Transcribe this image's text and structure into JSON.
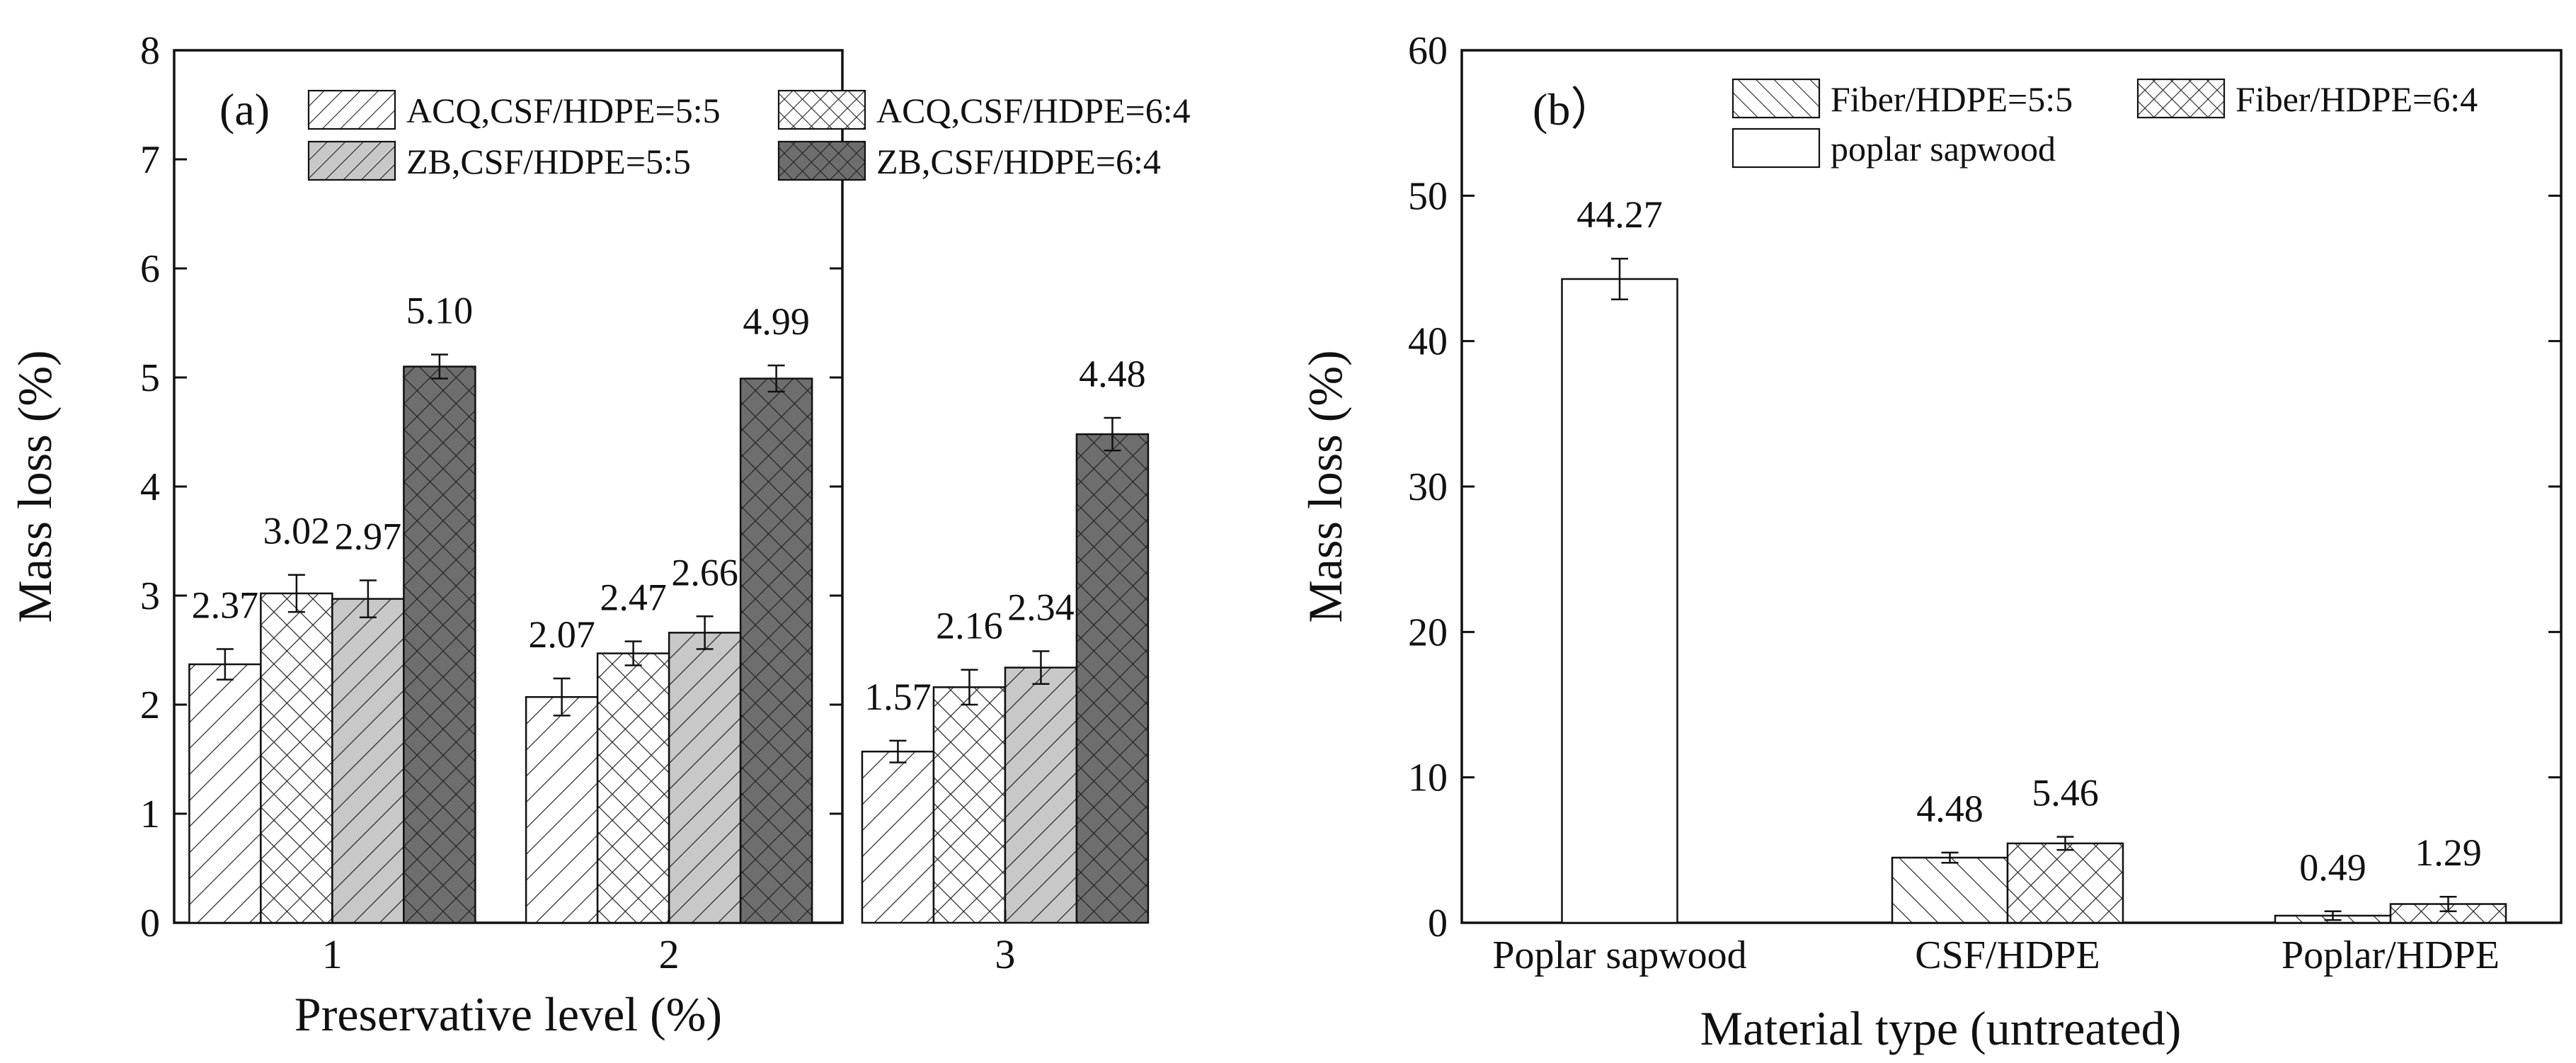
{
  "chart_data": [
    {
      "panel": "(a)",
      "type": "bar",
      "title": "",
      "xlabel": "Preservative level (%)",
      "ylabel": "Mass loss (%)",
      "ylim": [
        0,
        8
      ],
      "yticks": [
        "0",
        "1",
        "2",
        "3",
        "4",
        "5",
        "6",
        "7",
        "8"
      ],
      "categories": [
        "1",
        "2",
        "3"
      ],
      "legend_position": "top",
      "series": [
        {
          "name": "ACQ,CSF/HDPE=5:5",
          "values": [
            2.37,
            2.07,
            1.57
          ],
          "labels": [
            "2.37",
            "2.07",
            "1.57"
          ],
          "errors": [
            0.14,
            0.17,
            0.1
          ],
          "pattern": "diag-fwd",
          "fill": "#ffffff"
        },
        {
          "name": "ACQ,CSF/HDPE=6:4",
          "values": [
            3.02,
            2.47,
            2.16
          ],
          "labels": [
            "3.02",
            "2.47",
            "2.16"
          ],
          "errors": [
            0.17,
            0.11,
            0.16
          ],
          "pattern": "cross",
          "fill": "#ffffff"
        },
        {
          "name": "ZB,CSF/HDPE=5:5",
          "values": [
            2.97,
            2.66,
            2.34
          ],
          "labels": [
            "2.97",
            "2.66",
            "2.34"
          ],
          "errors": [
            0.17,
            0.15,
            0.15
          ],
          "pattern": "diag-fwd",
          "fill": "#c8c8c8"
        },
        {
          "name": "ZB,CSF/HDPE=6:4",
          "values": [
            5.1,
            4.99,
            4.48
          ],
          "labels": [
            "5.10",
            "4.99",
            "4.48"
          ],
          "errors": [
            0.11,
            0.12,
            0.15
          ],
          "pattern": "cross",
          "fill": "#6e6e6e"
        }
      ]
    },
    {
      "panel": "(b）",
      "type": "bar",
      "title": "",
      "xlabel": "Material type (untreated)",
      "ylabel": "Mass loss (%)",
      "ylim": [
        0,
        60
      ],
      "yticks": [
        "0",
        "10",
        "20",
        "30",
        "40",
        "50",
        "60"
      ],
      "categories": [
        "Poplar sapwood",
        "CSF/HDPE",
        "Poplar/HDPE"
      ],
      "legend_position": "top",
      "bars": [
        {
          "category": 0,
          "series": "poplar sapwood",
          "value": 44.27,
          "label": "44.27",
          "error": 1.4,
          "pattern": "none",
          "fill": "#ffffff"
        },
        {
          "category": 1,
          "series": "Fiber/HDPE=5:5",
          "value": 4.48,
          "label": "4.48",
          "error": 0.35,
          "pattern": "diag-back",
          "fill": "#ffffff"
        },
        {
          "category": 1,
          "series": "Fiber/HDPE=6:4",
          "value": 5.46,
          "label": "5.46",
          "error": 0.45,
          "pattern": "cross",
          "fill": "#ffffff"
        },
        {
          "category": 2,
          "series": "Fiber/HDPE=5:5",
          "value": 0.49,
          "label": "0.49",
          "error": 0.3,
          "pattern": "diag-back",
          "fill": "#ffffff"
        },
        {
          "category": 2,
          "series": "Fiber/HDPE=6:4",
          "value": 1.29,
          "label": "1.29",
          "error": 0.5,
          "pattern": "cross",
          "fill": "#ffffff"
        }
      ],
      "legend": [
        {
          "name": "Fiber/HDPE=5:5",
          "pattern": "diag-back"
        },
        {
          "name": "Fiber/HDPE=6:4",
          "pattern": "cross"
        },
        {
          "name": "poplar sapwood",
          "pattern": "none"
        }
      ]
    }
  ]
}
